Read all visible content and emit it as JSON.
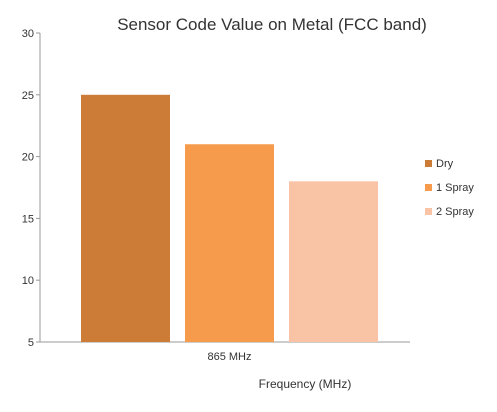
{
  "chart_data": {
    "type": "bar",
    "title": "Sensor Code Value on Metal (FCC band)",
    "categories": [
      "865 MHz"
    ],
    "series": [
      {
        "name": "Dry",
        "values": [
          25
        ],
        "color": "#CD7C37"
      },
      {
        "name": "1 Spray",
        "values": [
          21
        ],
        "color": "#F59B4B"
      },
      {
        "name": "2 Spray",
        "values": [
          18
        ],
        "color": "#F9C4A6"
      }
    ],
    "xlabel": "Frequency (MHz)",
    "ylabel": "",
    "ylim": [
      5,
      30
    ],
    "yticks": [
      5,
      10,
      15,
      20,
      25,
      30
    ],
    "grid": false,
    "legend_position": "right"
  }
}
